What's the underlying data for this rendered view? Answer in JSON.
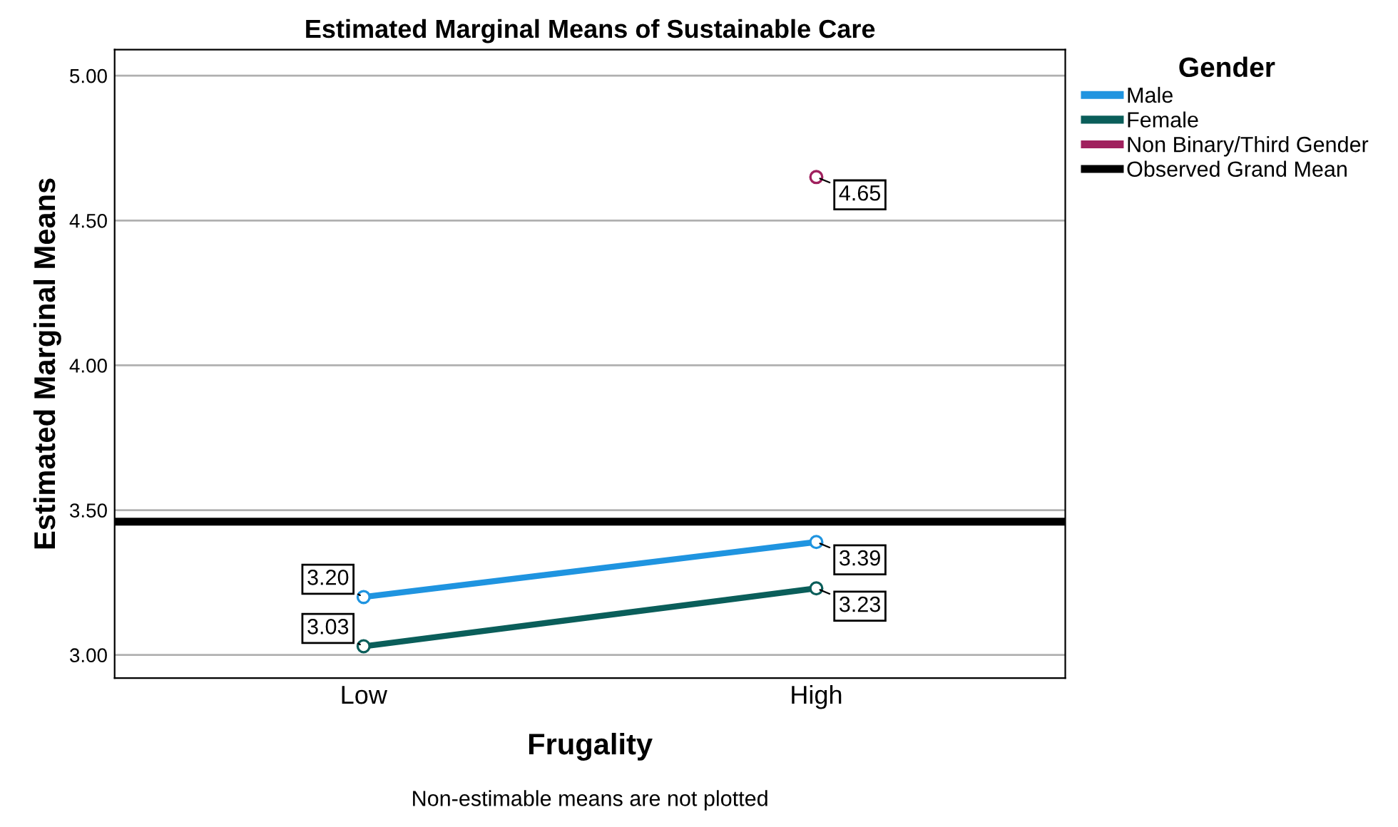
{
  "chart_data": {
    "type": "line",
    "title": "Estimated Marginal Means of Sustainable Care",
    "xlabel": "Frugality",
    "ylabel": "Estimated Marginal Means",
    "legend_title": "Gender",
    "categories": [
      "Low",
      "High"
    ],
    "series": [
      {
        "name": "Male",
        "color": "#1f94e0",
        "values": [
          3.2,
          3.39
        ],
        "value_labels": [
          "3.20",
          "3.39"
        ]
      },
      {
        "name": "Female",
        "color": "#0a5e5a",
        "values": [
          3.03,
          3.23
        ],
        "value_labels": [
          "3.03",
          "3.23"
        ]
      },
      {
        "name": "Non Binary/Third Gender",
        "color": "#a0215e",
        "values": [
          null,
          4.65
        ],
        "value_labels": [
          null,
          "4.65"
        ]
      }
    ],
    "ref_lines": [
      {
        "axis": "y",
        "value": 3.46,
        "label": "Observed Grand Mean",
        "color": "#000000"
      }
    ],
    "ylim": [
      2.92,
      5.09
    ],
    "yticks": [
      {
        "value": 3.0,
        "label": "3.00"
      },
      {
        "value": 3.5,
        "label": "3.50"
      },
      {
        "value": 4.0,
        "label": "4.00"
      },
      {
        "value": 4.5,
        "label": "4.50"
      },
      {
        "value": 5.0,
        "label": "5.00"
      }
    ],
    "grid": "y",
    "legend": "top right",
    "marker": "circle",
    "line_style": "solid",
    "annotations": [
      "Non-estimable means are not plotted"
    ]
  }
}
